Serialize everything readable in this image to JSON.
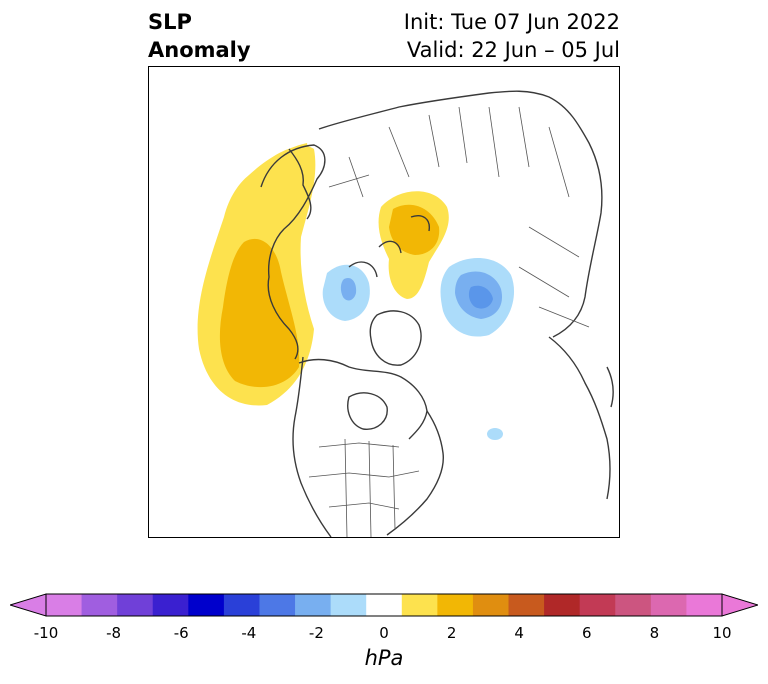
{
  "title": {
    "left_line1": "SLP",
    "left_line2": "Anomaly",
    "right_line1": "Init: Tue 07 Jun 2022",
    "right_line2": "Valid: 22 Jun – 05 Jul"
  },
  "colorbar": {
    "label": "hPa",
    "ticks": [
      "-10",
      "-8",
      "-6",
      "-4",
      "-2",
      "0",
      "2",
      "4",
      "6",
      "8",
      "10"
    ],
    "colors": [
      "#d97ee6",
      "#a05ee0",
      "#7040d8",
      "#3a20d0",
      "#0000cc",
      "#2a40d8",
      "#4d78e6",
      "#78aff0",
      "#acdcfa",
      "#ffffff",
      "#fde24e",
      "#f2b705",
      "#e08e10",
      "#c85a1e",
      "#b02828",
      "#c23a55",
      "#cc5580",
      "#dc68b0",
      "#ea78d8"
    ],
    "under_color": "#d97ee6",
    "over_color": "#ea78d8"
  },
  "map": {
    "anomaly_colors": {
      "positive_light": "#fde24e",
      "positive_mid": "#f2b705",
      "negative_light": "#acdcfa",
      "negative_mid": "#78aff0",
      "negative_strong": "#5a96ea"
    },
    "coastline_color": "#3a3a3a"
  }
}
